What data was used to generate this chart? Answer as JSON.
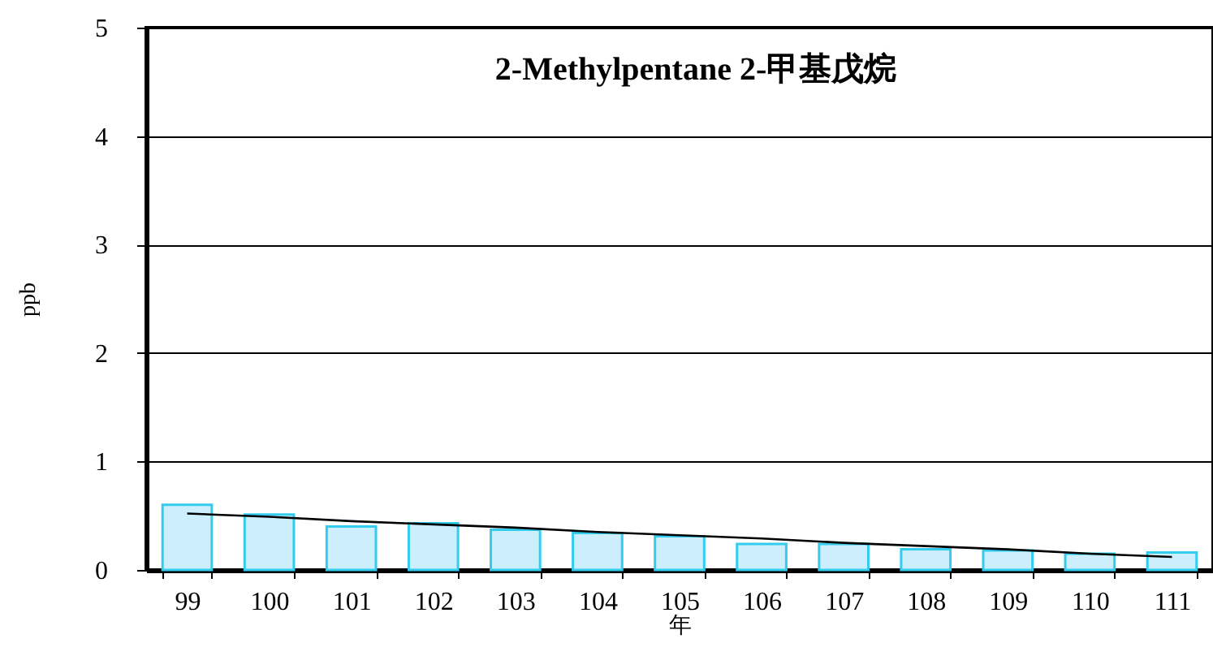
{
  "chart_data": {
    "type": "bar",
    "title": "2-Methylpentane 2-甲基戊烷",
    "xlabel": "年",
    "ylabel": "ppb",
    "categories": [
      "99",
      "100",
      "101",
      "102",
      "103",
      "104",
      "105",
      "106",
      "107",
      "108",
      "109",
      "110",
      "111"
    ],
    "series": [
      {
        "color": "#cdeefd",
        "values": [
          0.6,
          0.51,
          0.4,
          0.43,
          0.37,
          0.34,
          0.31,
          0.24,
          0.24,
          0.19,
          0.18,
          0.15,
          0.16
        ]
      },
      {
        "type": "line",
        "color": "#000000",
        "values": [
          0.52,
          0.49,
          0.45,
          0.42,
          0.39,
          0.35,
          0.32,
          0.29,
          0.25,
          0.22,
          0.19,
          0.15,
          0.12
        ]
      }
    ],
    "ylim": [
      0,
      5
    ],
    "yticks": [
      0,
      1,
      2,
      3,
      4,
      5
    ],
    "grid": "y",
    "legend": false
  }
}
